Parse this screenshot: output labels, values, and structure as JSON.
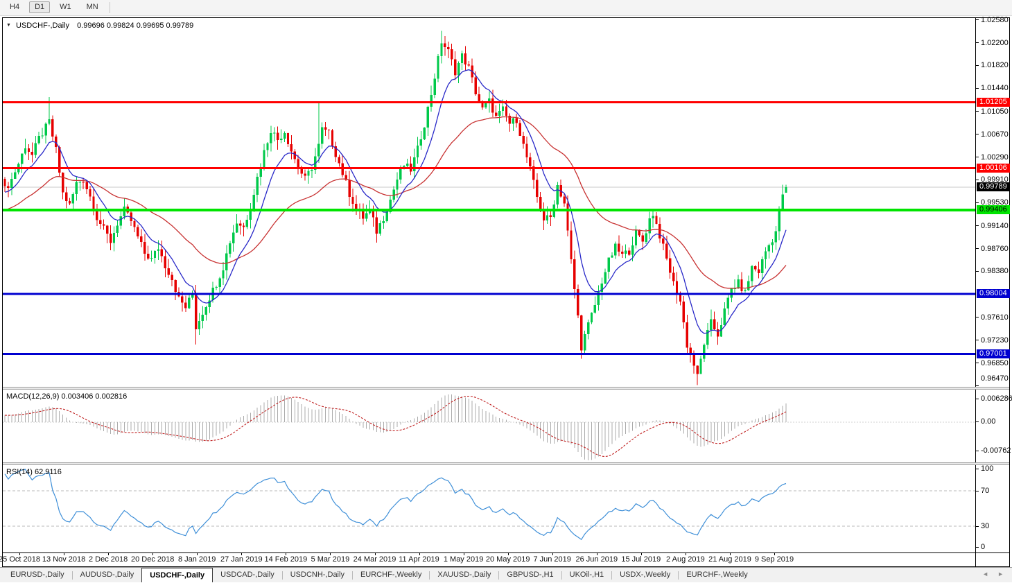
{
  "toolbar": {
    "timeframe_buttons": [
      {
        "label": "H4",
        "active": false
      },
      {
        "label": "D1",
        "active": true
      },
      {
        "label": "W1",
        "active": false
      },
      {
        "label": "MN",
        "active": false
      }
    ]
  },
  "chart_data": {
    "type": "candlestick",
    "symbol": "USDCHF",
    "timeframe": "Daily",
    "symbol_title": "USDCHF-,Daily",
    "ohlc_display": "0.99696 0.99824 0.99695 0.99789",
    "last_bar": {
      "open": 0.99696,
      "high": 0.99824,
      "low": 0.99695,
      "close": 0.99789
    },
    "bars_total": 230,
    "current_price": 0.99789,
    "current_price_label": "0.99789",
    "price_range_visible": [
      0.9647,
      1.0263
    ],
    "x_labels": [
      "25 Oct 2018",
      "13 Nov 2018",
      "2 Dec 2018",
      "20 Dec 2018",
      "8 Jan 2019",
      "27 Jan 2019",
      "14 Feb 2019",
      "5 Mar 2019",
      "24 Mar 2019",
      "11 Apr 2019",
      "1 May 2019",
      "20 May 2019",
      "7 Jun 2019",
      "26 Jun 2019",
      "15 Jul 2019",
      "2 Aug 2019",
      "21 Aug 2019",
      "9 Sep 2019"
    ],
    "y_ticks": [
      "1.02580",
      "1.02200",
      "1.01820",
      "1.01440",
      "1.01050",
      "1.00670",
      "1.00290",
      "0.99910",
      "0.99530",
      "0.99140",
      "0.98760",
      "0.98380",
      "0.97610",
      "0.97230",
      "0.96850",
      "0.96470"
    ],
    "horizontal_levels": [
      {
        "price": 1.01205,
        "label": "1.01205",
        "color": "#FF0000",
        "text_color": "#FFFFFF",
        "type": "resistance"
      },
      {
        "price": 1.00106,
        "label": "1.00106",
        "color": "#FF0000",
        "text_color": "#FFFFFF",
        "type": "resistance"
      },
      {
        "price": 0.99406,
        "label": "0.99406",
        "color": "#00E400",
        "text_color": "#000000",
        "type": "pivot"
      },
      {
        "price": 0.98004,
        "label": "0.98004",
        "color": "#0000D0",
        "text_color": "#FFFFFF",
        "type": "support"
      },
      {
        "price": 0.97001,
        "label": "0.97001",
        "color": "#0000D0",
        "text_color": "#FFFFFF",
        "type": "support"
      }
    ],
    "candle_colors": {
      "bull": "#00C94A",
      "bear": "#E60000"
    },
    "moving_averages": [
      {
        "type": "ema",
        "period": 40,
        "color": "#C83232"
      },
      {
        "type": "ema",
        "period": 10,
        "color": "#2828C8"
      }
    ],
    "price_path_anchors": [
      [
        0,
        0.9975
      ],
      [
        2,
        0.9992
      ],
      [
        4,
        1.0018
      ],
      [
        6,
        1.0048
      ],
      [
        8,
        1.0032
      ],
      [
        10,
        1.006
      ],
      [
        12,
        1.0078
      ],
      [
        13,
        1.0088
      ],
      [
        15,
        1.004
      ],
      [
        17,
        0.9968
      ],
      [
        19,
        0.9948
      ],
      [
        21,
        0.9985
      ],
      [
        23,
        0.9992
      ],
      [
        25,
        0.9963
      ],
      [
        27,
        0.9928
      ],
      [
        29,
        0.9908
      ],
      [
        31,
        0.9888
      ],
      [
        33,
        0.9918
      ],
      [
        35,
        0.994
      ],
      [
        37,
        0.9922
      ],
      [
        39,
        0.9895
      ],
      [
        41,
        0.9868
      ],
      [
        43,
        0.9858
      ],
      [
        45,
        0.9878
      ],
      [
        47,
        0.9848
      ],
      [
        49,
        0.9826
      ],
      [
        51,
        0.9792
      ],
      [
        53,
        0.9778
      ],
      [
        55,
        0.98
      ],
      [
        56,
        0.9745
      ],
      [
        58,
        0.977
      ],
      [
        60,
        0.9795
      ],
      [
        62,
        0.9818
      ],
      [
        64,
        0.9845
      ],
      [
        66,
        0.9888
      ],
      [
        68,
        0.992
      ],
      [
        70,
        0.9912
      ],
      [
        72,
        0.9945
      ],
      [
        74,
        0.9995
      ],
      [
        76,
        1.0038
      ],
      [
        78,
        1.0075
      ],
      [
        80,
        1.0058
      ],
      [
        82,
        1.0072
      ],
      [
        84,
        1.004
      ],
      [
        86,
        1.0012
      ],
      [
        88,
        0.9992
      ],
      [
        90,
        1.0012
      ],
      [
        92,
        1.0048
      ],
      [
        93,
        1.0075
      ],
      [
        95,
        1.0068
      ],
      [
        97,
        1.0035
      ],
      [
        99,
        1.0002
      ],
      [
        101,
        0.9968
      ],
      [
        103,
        0.9942
      ],
      [
        105,
        0.9928
      ],
      [
        107,
        0.994
      ],
      [
        109,
        0.9905
      ],
      [
        111,
        0.9928
      ],
      [
        113,
        0.9958
      ],
      [
        115,
        0.9992
      ],
      [
        117,
        1.0015
      ],
      [
        119,
        1.0008
      ],
      [
        121,
        1.0042
      ],
      [
        123,
        1.0085
      ],
      [
        125,
        1.0135
      ],
      [
        127,
        1.0192
      ],
      [
        128,
        1.0222
      ],
      [
        130,
        1.0205
      ],
      [
        132,
        1.0172
      ],
      [
        134,
        1.0198
      ],
      [
        136,
        1.0178
      ],
      [
        138,
        1.0138
      ],
      [
        140,
        1.0108
      ],
      [
        142,
        1.0122
      ],
      [
        144,
        1.0095
      ],
      [
        146,
        1.0108
      ],
      [
        148,
        1.0085
      ],
      [
        150,
        1.0092
      ],
      [
        152,
        1.0048
      ],
      [
        154,
        1.0008
      ],
      [
        156,
        0.9962
      ],
      [
        158,
        0.9925
      ],
      [
        160,
        0.9928
      ],
      [
        162,
        0.9982
      ],
      [
        164,
        0.9952
      ],
      [
        166,
        0.9855
      ],
      [
        168,
        0.9762
      ],
      [
        169,
        0.9712
      ],
      [
        171,
        0.9748
      ],
      [
        173,
        0.9782
      ],
      [
        175,
        0.9822
      ],
      [
        177,
        0.9855
      ],
      [
        179,
        0.9878
      ],
      [
        181,
        0.9865
      ],
      [
        183,
        0.9872
      ],
      [
        185,
        0.9902
      ],
      [
        187,
        0.9888
      ],
      [
        189,
        0.9925
      ],
      [
        190,
        0.9935
      ],
      [
        192,
        0.9898
      ],
      [
        194,
        0.9858
      ],
      [
        196,
        0.9818
      ],
      [
        198,
        0.9788
      ],
      [
        200,
        0.9715
      ],
      [
        202,
        0.9682
      ],
      [
        203,
        0.9662
      ],
      [
        205,
        0.9718
      ],
      [
        207,
        0.9752
      ],
      [
        209,
        0.9732
      ],
      [
        211,
        0.9772
      ],
      [
        213,
        0.9808
      ],
      [
        215,
        0.9818
      ],
      [
        217,
        0.9802
      ],
      [
        219,
        0.9845
      ],
      [
        221,
        0.9838
      ],
      [
        223,
        0.9872
      ],
      [
        225,
        0.9892
      ],
      [
        226,
        0.9905
      ],
      [
        228,
        0.9968
      ],
      [
        229,
        0.99789
      ]
    ],
    "wick_overrides": [
      {
        "i": 13,
        "high": 1.0129
      },
      {
        "i": 92,
        "high": 1.012
      },
      {
        "i": 128,
        "high": 1.024
      },
      {
        "i": 56,
        "low": 0.9716
      },
      {
        "i": 169,
        "low": 0.9692
      },
      {
        "i": 203,
        "low": 0.9648
      },
      {
        "i": 209,
        "low": 0.9715
      }
    ],
    "indicators": {
      "macd": {
        "params": "12,26,9",
        "value": 0.003406,
        "signal_value": 0.002816,
        "axis_labels": [
          "0.006286",
          "0.00",
          "-0.00762"
        ],
        "histogram_color": "#ABABAB",
        "signal_color": "#C02020"
      },
      "rsi": {
        "period": 14,
        "value": 62.9116,
        "axis_labels": [
          "100",
          "70",
          "30",
          "0"
        ],
        "levels": [
          70,
          30
        ],
        "line_color": "#3E8FD8"
      }
    }
  },
  "macd_panel": {
    "label_display": "MACD(12,26,9) 0.003406 0.002816"
  },
  "rsi_panel": {
    "label_display": "RSI(14) 62.9116"
  },
  "price_scale": {
    "current_price_chip": {
      "label": "0.99789",
      "bg": "#000000",
      "text_color": "#FFFFFF"
    }
  },
  "tab_bar": {
    "tabs": [
      {
        "label": "EURUSD-,Daily",
        "active": false
      },
      {
        "label": "AUDUSD-,Daily",
        "active": false
      },
      {
        "label": "USDCHF-,Daily",
        "active": true
      },
      {
        "label": "USDCAD-,Daily",
        "active": false
      },
      {
        "label": "USDCNH-,Daily",
        "active": false
      },
      {
        "label": "EURCHF-,Weekly",
        "active": false
      },
      {
        "label": "XAUUSD-,Daily",
        "active": false
      },
      {
        "label": "GBPUSD-,H1",
        "active": false
      },
      {
        "label": "UKOil-,H1",
        "active": false
      },
      {
        "label": "USDX-,Weekly",
        "active": false
      },
      {
        "label": "EURCHF-,Weekly",
        "active": false
      }
    ],
    "scroll_left_icon": "◄",
    "scroll_right_icon": "►"
  }
}
